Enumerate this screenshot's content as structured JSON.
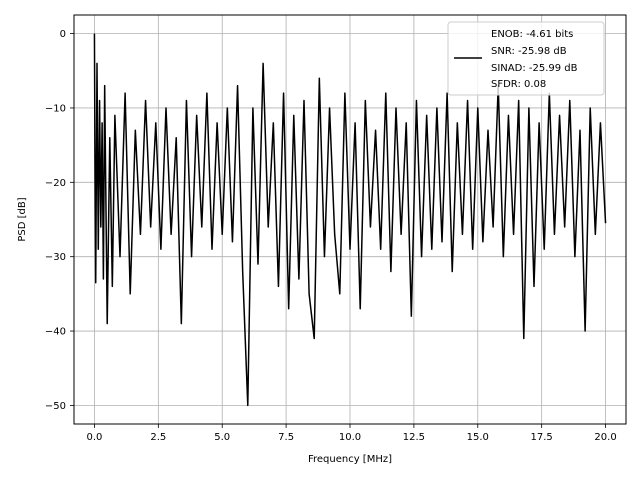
{
  "chart_data": {
    "type": "line",
    "xlabel": "Frequency [MHz]",
    "ylabel": "PSD [dB]",
    "xlim": [
      -0.8,
      20.8
    ],
    "ylim": [
      -52.5,
      2.5
    ],
    "xticks": [
      0.0,
      2.5,
      5.0,
      7.5,
      10.0,
      12.5,
      15.0,
      17.5,
      20.0
    ],
    "xtick_labels": [
      "0.0",
      "2.5",
      "5.0",
      "7.5",
      "10.0",
      "12.5",
      "15.0",
      "17.5",
      "20.0"
    ],
    "yticks": [
      0,
      -10,
      -20,
      -30,
      -40,
      -50
    ],
    "ytick_labels": [
      "0",
      "−10",
      "−20",
      "−30",
      "−40",
      "−50"
    ],
    "grid": true,
    "legend_position": "top-right",
    "legend": [
      "ENOB: -4.61 bits",
      "SNR: -25.98 dB",
      "SINAD: -25.99 dB",
      "SFDR: 0.08"
    ],
    "series": [
      {
        "color": "#000000",
        "x": [
          0.0,
          0.02,
          0.05,
          0.1,
          0.15,
          0.2,
          0.25,
          0.3,
          0.35,
          0.4,
          0.5,
          0.6,
          0.7,
          0.8,
          1.0,
          1.2,
          1.4,
          1.6,
          1.8,
          2.0,
          2.2,
          2.4,
          2.6,
          2.8,
          3.0,
          3.2,
          3.4,
          3.6,
          3.8,
          4.0,
          4.2,
          4.4,
          4.6,
          4.8,
          5.0,
          5.2,
          5.4,
          5.6,
          5.8,
          6.0,
          6.2,
          6.4,
          6.6,
          6.8,
          7.0,
          7.2,
          7.4,
          7.6,
          7.8,
          8.0,
          8.2,
          8.4,
          8.6,
          8.8,
          9.0,
          9.2,
          9.4,
          9.6,
          9.8,
          10.0,
          10.2,
          10.4,
          10.6,
          10.8,
          11.0,
          11.2,
          11.4,
          11.6,
          11.8,
          12.0,
          12.2,
          12.4,
          12.6,
          12.8,
          13.0,
          13.2,
          13.4,
          13.6,
          13.8,
          14.0,
          14.2,
          14.4,
          14.6,
          14.8,
          15.0,
          15.2,
          15.4,
          15.6,
          15.8,
          16.0,
          16.2,
          16.4,
          16.6,
          16.8,
          17.0,
          17.2,
          17.4,
          17.6,
          17.8,
          18.0,
          18.2,
          18.4,
          18.6,
          18.8,
          19.0,
          19.2,
          19.4,
          19.6,
          19.8,
          20.0
        ],
        "y": [
          0.0,
          -16.5,
          -33.5,
          -4.0,
          -29.0,
          -9.0,
          -26.0,
          -12.0,
          -33.0,
          -7.0,
          -39.0,
          -14.0,
          -34.0,
          -11.0,
          -30.0,
          -8.0,
          -35.0,
          -13.0,
          -27.0,
          -9.0,
          -26.0,
          -12.0,
          -29.0,
          -10.0,
          -27.0,
          -14.0,
          -39.0,
          -9.0,
          -30.0,
          -11.0,
          -26.0,
          -8.0,
          -29.0,
          -12.0,
          -27.0,
          -10.0,
          -28.0,
          -7.0,
          -32.0,
          -50.0,
          -10.0,
          -31.0,
          -4.0,
          -26.0,
          -12.0,
          -34.0,
          -8.0,
          -37.0,
          -11.0,
          -33.0,
          -9.0,
          -35.0,
          -41.0,
          -6.0,
          -30.0,
          -10.0,
          -27.0,
          -35.0,
          -8.0,
          -29.0,
          -12.0,
          -37.0,
          -9.0,
          -26.0,
          -13.0,
          -29.0,
          -8.0,
          -32.0,
          -10.0,
          -27.0,
          -12.0,
          -38.0,
          -9.0,
          -30.0,
          -11.0,
          -29.0,
          -10.0,
          -28.0,
          -8.0,
          -32.0,
          -12.0,
          -27.0,
          -9.0,
          -29.0,
          -10.0,
          -28.0,
          -13.0,
          -26.0,
          -7.0,
          -30.0,
          -11.0,
          -27.0,
          -9.0,
          -41.0,
          -10.0,
          -34.0,
          -12.0,
          -29.0,
          -8.0,
          -27.0,
          -11.0,
          -26.0,
          -9.0,
          -30.0,
          -13.0,
          -40.0,
          -10.0,
          -27.0,
          -12.0,
          -25.5
        ]
      }
    ]
  }
}
